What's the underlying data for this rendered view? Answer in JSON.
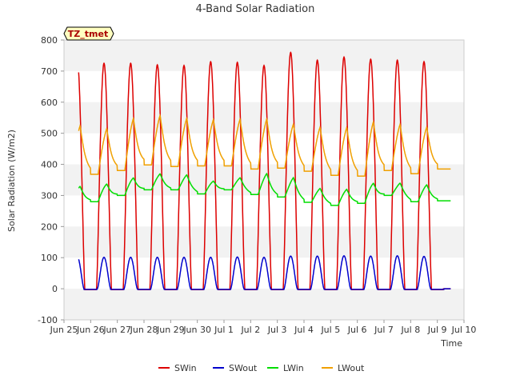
{
  "chart_data": {
    "type": "line",
    "title": "4-Band Solar Radiation",
    "xlabel": "Time",
    "ylabel": "Solar Radiation (W/m2)",
    "ylim": [
      -100,
      800
    ],
    "yticks": [
      -100,
      0,
      100,
      200,
      300,
      400,
      500,
      600,
      700,
      800
    ],
    "xlim": [
      "2024-06-25",
      "2024-07-10"
    ],
    "xtick_labels": [
      "Jun 25",
      "Jun 26",
      "Jun 27",
      "Jun 28",
      "Jun 29",
      "Jun 30",
      "Jul 1",
      "Jul 2",
      "Jul 3",
      "Jul 4",
      "Jul 5",
      "Jul 6",
      "Jul 7",
      "Jul 8",
      "Jul 9",
      "Jul 10"
    ],
    "grid": "alternating horizontal bands",
    "legend_placement": "bottom",
    "annotation": "TZ_tmet",
    "day_labels": [
      "Jun 25",
      "Jun 26",
      "Jun 27",
      "Jun 28",
      "Jun 29",
      "Jun 30",
      "Jul 1",
      "Jul 2",
      "Jul 3",
      "Jul 4",
      "Jul 5",
      "Jul 6",
      "Jul 7",
      "Jul 8",
      "Jul 9"
    ],
    "series": [
      {
        "name": "SWin",
        "color": "#dd0000",
        "daily_peak": [
          733,
          725,
          725,
          720,
          718,
          730,
          728,
          718,
          760,
          735,
          745,
          738,
          735,
          730,
          0
        ],
        "night_value": -3
      },
      {
        "name": "SWout",
        "color": "#0000cc",
        "daily_peak": [
          102,
          101,
          101,
          101,
          101,
          101,
          102,
          101,
          105,
          105,
          106,
          105,
          106,
          104,
          0
        ],
        "night_value": -2
      },
      {
        "name": "LWin",
        "color": "#00dd00",
        "daily_peak": [
          335,
          342,
          362,
          375,
          372,
          350,
          362,
          378,
          365,
          328,
          325,
          345,
          345,
          340,
          0
        ],
        "daily_min": [
          272,
          280,
          300,
          318,
          318,
          305,
          318,
          303,
          295,
          278,
          268,
          275,
          300,
          280,
          283
        ]
      },
      {
        "name": "LWout",
        "color": "#f0a000",
        "daily_peak": [
          540,
          530,
          565,
          575,
          565,
          560,
          562,
          563,
          545,
          535,
          535,
          555,
          545,
          535,
          0
        ],
        "daily_min": [
          375,
          368,
          380,
          398,
          393,
          395,
          395,
          385,
          388,
          378,
          365,
          362,
          380,
          370,
          385
        ]
      }
    ]
  }
}
